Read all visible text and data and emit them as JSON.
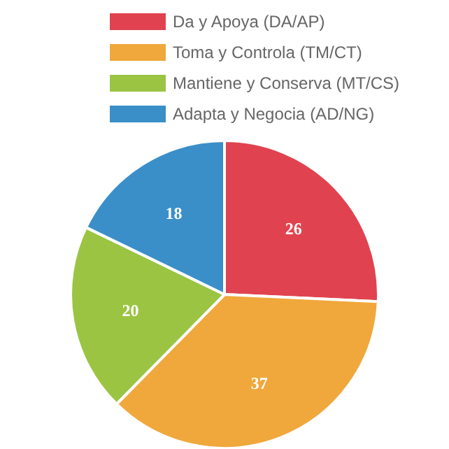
{
  "chart_data": {
    "type": "pie",
    "categories": [
      "Da y Apoya (DA/AP)",
      "Toma y Controla (TM/CT)",
      "Mantiene y Conserva (MT/CS)",
      "Adapta y Negocia (AD/NG)"
    ],
    "values": [
      26,
      37,
      20,
      18
    ],
    "colors": [
      "#e0434f",
      "#f0a83c",
      "#9bc443",
      "#3a8fc9"
    ],
    "data_labels": true,
    "legend": "top"
  }
}
